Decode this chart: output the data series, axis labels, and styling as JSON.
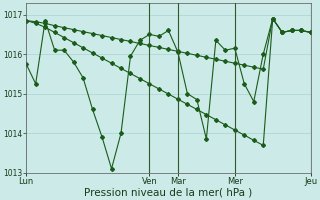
{
  "background_color": "#cceae7",
  "grid_color": "#b0d8d4",
  "line_color": "#1a5c1a",
  "marker_color": "#1a5c1a",
  "xlabel": "Pression niveau de la mer( hPa )",
  "ylim": [
    1013.0,
    1017.3
  ],
  "yticks": [
    1013,
    1014,
    1015,
    1016,
    1017
  ],
  "day_labels": [
    "Lun",
    "Ven",
    "Mar",
    "Mer",
    "Jeu"
  ],
  "day_x": [
    0,
    13,
    16,
    22,
    30
  ],
  "vline_x": [
    13,
    16,
    22,
    30
  ],
  "series": [
    [
      1015.75,
      1015.25,
      1016.85,
      1016.1,
      1016.1,
      1015.8,
      1015.4,
      1014.6,
      1013.9,
      1013.1,
      1014.0,
      1015.95,
      1016.35,
      1016.5,
      1016.45,
      1016.6,
      1016.05,
      1015.0,
      1014.85,
      1013.85,
      1016.35,
      1016.1,
      1016.15,
      1015.25,
      1014.8,
      1016.0,
      1016.9,
      1016.55,
      1016.6,
      1016.6,
      1016.55
    ],
    [
      1016.85,
      1016.82,
      1016.78,
      1016.72,
      1016.67,
      1016.62,
      1016.57,
      1016.52,
      1016.47,
      1016.42,
      1016.37,
      1016.32,
      1016.27,
      1016.22,
      1016.17,
      1016.12,
      1016.07,
      1016.02,
      1015.97,
      1015.92,
      1015.87,
      1015.82,
      1015.77,
      1015.72,
      1015.67,
      1015.62,
      1016.9,
      1016.55,
      1016.6,
      1016.6,
      1016.55
    ],
    [
      1016.85,
      1016.78,
      1016.68,
      1016.55,
      1016.42,
      1016.29,
      1016.16,
      1016.03,
      1015.9,
      1015.77,
      1015.64,
      1015.51,
      1015.38,
      1015.25,
      1015.12,
      1014.99,
      1014.86,
      1014.73,
      1014.6,
      1014.47,
      1014.34,
      1014.21,
      1014.08,
      1013.95,
      1013.82,
      1013.69,
      1016.9,
      1016.55,
      1016.6,
      1016.6,
      1016.55
    ]
  ],
  "n_points": 31
}
